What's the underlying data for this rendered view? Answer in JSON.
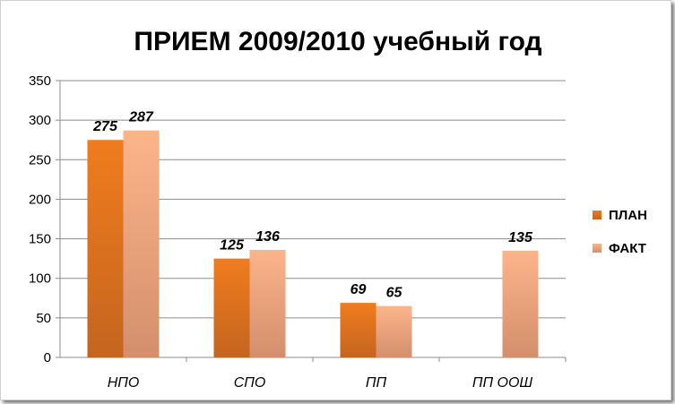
{
  "chart_data": {
    "type": "bar",
    "title": "ПРИЕМ 2009/2010 учебный год",
    "categories": [
      "НПО",
      "СПО",
      "ПП",
      "ПП ООШ"
    ],
    "series": [
      {
        "name": "ПЛАН",
        "values": [
          275,
          125,
          69,
          null
        ],
        "color": "#e46c0a"
      },
      {
        "name": "ФАКТ",
        "values": [
          287,
          136,
          65,
          135
        ],
        "color": "#fbae7e"
      }
    ],
    "ylim": [
      0,
      350
    ],
    "yticks": [
      0,
      50,
      100,
      150,
      200,
      250,
      300,
      350
    ],
    "grid": true,
    "legend_position": "right"
  }
}
